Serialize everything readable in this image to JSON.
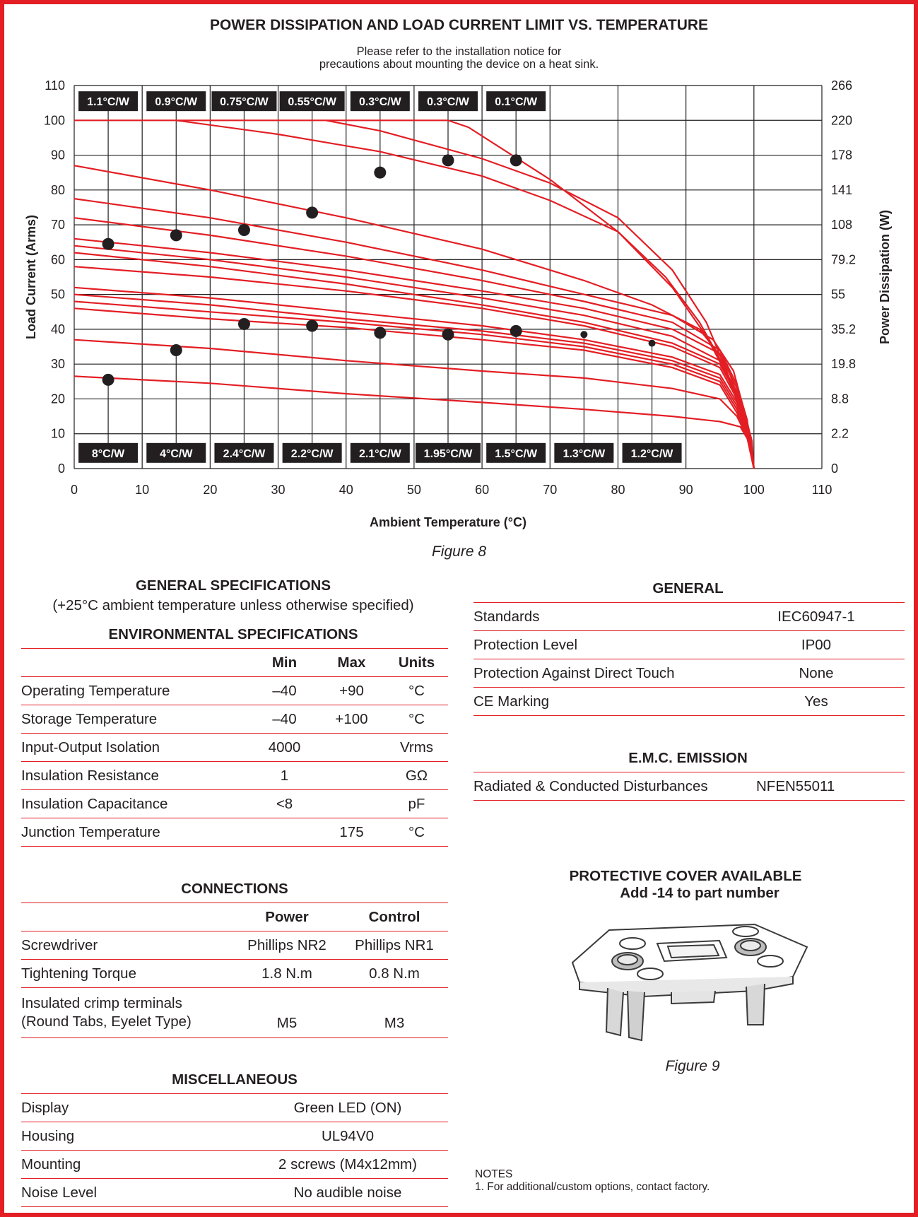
{
  "colors": {
    "accent": "#e31e24",
    "text": "#231f20",
    "label_bg": "#231f20"
  },
  "figure8": {
    "title": "POWER DISSIPATION AND LOAD CURRENT LIMIT VS. TEMPERATURE",
    "note_line1": "Please refer to the installation notice for",
    "note_line2": "precautions about mounting the device on a heat sink.",
    "caption": "Figure 8"
  },
  "chart_data": {
    "type": "line",
    "title": "POWER DISSIPATION AND LOAD CURRENT LIMIT VS. TEMPERATURE",
    "xlabel": "Ambient Temperature (°C)",
    "ylabel": "Load Current (Arms)",
    "ylabel_right": "Power Dissipation (W)",
    "xlim": [
      0,
      110
    ],
    "ylim": [
      0,
      110
    ],
    "x_ticks": [
      "0",
      "10",
      "20",
      "30",
      "40",
      "50",
      "60",
      "70",
      "80",
      "90",
      "100",
      "110"
    ],
    "y_ticks": [
      "0",
      "10",
      "20",
      "30",
      "40",
      "50",
      "60",
      "70",
      "80",
      "90",
      "100",
      "110"
    ],
    "y_ticks_right": [
      "0",
      "2.2",
      "8.8",
      "19.8",
      "35.2",
      "55",
      "79.2",
      "108",
      "141",
      "178",
      "220",
      "266"
    ],
    "grid": true,
    "top_labels": [
      "1.1°C/W",
      "0.9°C/W",
      "0.75°C/W",
      "0.55°C/W",
      "0.3°C/W",
      "0.3°C/W",
      "0.1°C/W"
    ],
    "bottom_labels": [
      "8°C/W",
      "4°C/W",
      "2.4°C/W",
      "2.2°C/W",
      "2.1°C/W",
      "1.95°C/W",
      "1.5°C/W",
      "1.3°C/W",
      "1.2°C/W"
    ],
    "markers": [
      {
        "x": 5,
        "y": 64.5
      },
      {
        "x": 15,
        "y": 67
      },
      {
        "x": 25,
        "y": 68.5
      },
      {
        "x": 35,
        "y": 73.5
      },
      {
        "x": 45,
        "y": 85
      },
      {
        "x": 55,
        "y": 88.5
      },
      {
        "x": 65,
        "y": 88.5
      },
      {
        "x": 5,
        "y": 25.5
      },
      {
        "x": 15,
        "y": 34
      },
      {
        "x": 25,
        "y": 41.5
      },
      {
        "x": 35,
        "y": 41
      },
      {
        "x": 45,
        "y": 39
      },
      {
        "x": 55,
        "y": 38.5
      },
      {
        "x": 65,
        "y": 39.5
      },
      {
        "x": 75,
        "y": 38.5
      },
      {
        "x": 85,
        "y": 36
      }
    ],
    "series": [
      {
        "points": [
          [
            0,
            100
          ],
          [
            55,
            100
          ],
          [
            58,
            98
          ],
          [
            70,
            83
          ],
          [
            80,
            68
          ],
          [
            88,
            52
          ],
          [
            93,
            38
          ],
          [
            96,
            27
          ],
          [
            98,
            17
          ],
          [
            99.5,
            8
          ],
          [
            100,
            0
          ]
        ]
      },
      {
        "points": [
          [
            37,
            100
          ],
          [
            45,
            97
          ],
          [
            60,
            89
          ],
          [
            70,
            82
          ],
          [
            80,
            72
          ],
          [
            88,
            57
          ],
          [
            93,
            42
          ],
          [
            96,
            28
          ],
          [
            98,
            17
          ],
          [
            99.5,
            8
          ],
          [
            100,
            0
          ]
        ]
      },
      {
        "points": [
          [
            15,
            100
          ],
          [
            30,
            96
          ],
          [
            45,
            91
          ],
          [
            60,
            84
          ],
          [
            70,
            77
          ],
          [
            80,
            68
          ],
          [
            87,
            55
          ],
          [
            92,
            42
          ],
          [
            96,
            28
          ],
          [
            98,
            17
          ],
          [
            99.5,
            8
          ],
          [
            100,
            0
          ]
        ]
      },
      {
        "points": [
          [
            0,
            87
          ],
          [
            20,
            80
          ],
          [
            40,
            72
          ],
          [
            60,
            63
          ],
          [
            75,
            54
          ],
          [
            85,
            47
          ],
          [
            92,
            40
          ],
          [
            96,
            30
          ],
          [
            98,
            18
          ],
          [
            99.5,
            8
          ],
          [
            100,
            0
          ]
        ]
      },
      {
        "points": [
          [
            0,
            77.5
          ],
          [
            20,
            72
          ],
          [
            40,
            65
          ],
          [
            60,
            57
          ],
          [
            75,
            50
          ],
          [
            88,
            44
          ],
          [
            94,
            37
          ],
          [
            97,
            28
          ],
          [
            98.5,
            17
          ],
          [
            99.7,
            8
          ],
          [
            100,
            0
          ]
        ]
      },
      {
        "points": [
          [
            0,
            72
          ],
          [
            20,
            67
          ],
          [
            40,
            61
          ],
          [
            60,
            54
          ],
          [
            75,
            48
          ],
          [
            88,
            42
          ],
          [
            95,
            34
          ],
          [
            97.5,
            24
          ],
          [
            99,
            14
          ],
          [
            100,
            0
          ]
        ]
      },
      {
        "points": [
          [
            0,
            66
          ],
          [
            20,
            62
          ],
          [
            40,
            57
          ],
          [
            60,
            51
          ],
          [
            75,
            46
          ],
          [
            88,
            40
          ],
          [
            95,
            33
          ],
          [
            97.5,
            23
          ],
          [
            99,
            13
          ],
          [
            100,
            0
          ]
        ]
      },
      {
        "points": [
          [
            0,
            64
          ],
          [
            20,
            60
          ],
          [
            40,
            55
          ],
          [
            60,
            49
          ],
          [
            75,
            44
          ],
          [
            88,
            38
          ],
          [
            95,
            31
          ],
          [
            97.5,
            22
          ],
          [
            99,
            12
          ],
          [
            100,
            0
          ]
        ]
      },
      {
        "points": [
          [
            0,
            62
          ],
          [
            20,
            58
          ],
          [
            40,
            53
          ],
          [
            60,
            47
          ],
          [
            75,
            42
          ],
          [
            88,
            36
          ],
          [
            95,
            30
          ],
          [
            97.5,
            21
          ],
          [
            99,
            12
          ],
          [
            100,
            0
          ]
        ]
      },
      {
        "points": [
          [
            0,
            58
          ],
          [
            20,
            55
          ],
          [
            40,
            51
          ],
          [
            60,
            46
          ],
          [
            75,
            41
          ],
          [
            88,
            35
          ],
          [
            95,
            29
          ],
          [
            97.5,
            20
          ],
          [
            99,
            11
          ],
          [
            100,
            0
          ]
        ]
      },
      {
        "points": [
          [
            0,
            52
          ],
          [
            20,
            49
          ],
          [
            40,
            45
          ],
          [
            60,
            41
          ],
          [
            75,
            37
          ],
          [
            88,
            32
          ],
          [
            95,
            27
          ],
          [
            97.5,
            19
          ],
          [
            99,
            11
          ],
          [
            100,
            0
          ]
        ]
      },
      {
        "points": [
          [
            0,
            50
          ],
          [
            20,
            47
          ],
          [
            40,
            43
          ],
          [
            60,
            39.5
          ],
          [
            75,
            36
          ],
          [
            88,
            31
          ],
          [
            95,
            26
          ],
          [
            97.5,
            18
          ],
          [
            99,
            10
          ],
          [
            100,
            0
          ]
        ]
      },
      {
        "points": [
          [
            0,
            48
          ],
          [
            20,
            45
          ],
          [
            40,
            42
          ],
          [
            60,
            38.5
          ],
          [
            75,
            35
          ],
          [
            88,
            30
          ],
          [
            95,
            25
          ],
          [
            97.5,
            17
          ],
          [
            99,
            10
          ],
          [
            100,
            0
          ]
        ]
      },
      {
        "points": [
          [
            0,
            46
          ],
          [
            20,
            43
          ],
          [
            40,
            40.5
          ],
          [
            60,
            37
          ],
          [
            75,
            34
          ],
          [
            88,
            29
          ],
          [
            95,
            24
          ],
          [
            97.5,
            16
          ],
          [
            99,
            9
          ],
          [
            100,
            0
          ]
        ]
      },
      {
        "points": [
          [
            0,
            37
          ],
          [
            20,
            34.5
          ],
          [
            40,
            31
          ],
          [
            60,
            28
          ],
          [
            75,
            26
          ],
          [
            88,
            23
          ],
          [
            95,
            20
          ],
          [
            97.5,
            15
          ],
          [
            99,
            9
          ],
          [
            100,
            0
          ]
        ]
      },
      {
        "points": [
          [
            0,
            26.5
          ],
          [
            20,
            24.5
          ],
          [
            40,
            21.5
          ],
          [
            60,
            19
          ],
          [
            75,
            17
          ],
          [
            88,
            15
          ],
          [
            95,
            13.5
          ],
          [
            98,
            12
          ],
          [
            99.5,
            7
          ],
          [
            100,
            0
          ]
        ]
      }
    ]
  },
  "general_specs": {
    "title": "GENERAL SPECIFICATIONS",
    "subtitle": "(+25°C ambient temperature unless otherwise specified)"
  },
  "environmental": {
    "title": "ENVIRONMENTAL SPECIFICATIONS",
    "headers": [
      "",
      "Min",
      "Max",
      "Units"
    ],
    "rows": [
      [
        "Operating Temperature",
        "–40",
        "+90",
        "°C"
      ],
      [
        "Storage Temperature",
        "–40",
        "+100",
        "°C"
      ],
      [
        "Input-Output Isolation",
        "4000",
        "",
        "Vrms"
      ],
      [
        "Insulation Resistance",
        "1",
        "",
        "GΩ"
      ],
      [
        "Insulation Capacitance",
        "<8",
        "",
        "pF"
      ],
      [
        "Junction Temperature",
        "",
        "175",
        "°C"
      ]
    ]
  },
  "connections": {
    "title": "CONNECTIONS",
    "headers": [
      "",
      "Power",
      "Control"
    ],
    "rows": [
      [
        "Screwdriver",
        "Phillips NR2",
        "Phillips NR1"
      ],
      [
        "Tightening Torque",
        "1.8 N.m",
        "0.8 N.m"
      ]
    ],
    "crimp_label_line1": "Insulated crimp terminals",
    "crimp_label_line2": "(Round Tabs, Eyelet Type)",
    "crimp_power": "M5",
    "crimp_control": "M3"
  },
  "miscellaneous": {
    "title": "MISCELLANEOUS",
    "rows": [
      [
        "Display",
        "Green LED (ON)"
      ],
      [
        "Housing",
        "UL94V0"
      ],
      [
        "Mounting",
        "2 screws (M4x12mm)"
      ],
      [
        "Noise Level",
        "No audible noise"
      ]
    ]
  },
  "general": {
    "title": "GENERAL",
    "rows": [
      [
        "Standards",
        "IEC60947-1"
      ],
      [
        "Protection Level",
        "IP00"
      ],
      [
        "Protection Against Direct Touch",
        "None"
      ],
      [
        "CE Marking",
        "Yes"
      ]
    ]
  },
  "emc": {
    "title": "E.M.C. EMISSION",
    "rows": [
      [
        "Radiated & Conducted Disturbances",
        "NFEN55011"
      ]
    ]
  },
  "cover": {
    "title_line1": "PROTECTIVE COVER AVAILABLE",
    "title_line2": "Add -14 to part number",
    "caption": "Figure 9"
  },
  "notes": {
    "heading": "NOTES",
    "items": [
      "1.  For additional/custom options, contact factory."
    ]
  }
}
